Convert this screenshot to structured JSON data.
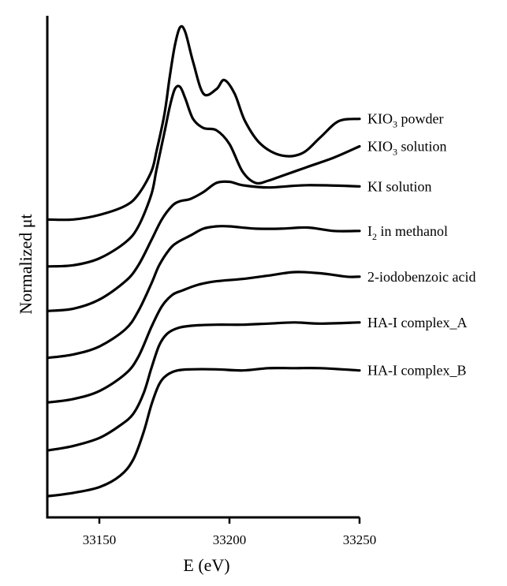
{
  "chart_data": {
    "type": "line",
    "xlabel": "E (eV)",
    "ylabel": "Normalized μt",
    "xlim": [
      33130,
      33250
    ],
    "x_ticks": [
      33150,
      33200,
      33250
    ],
    "y_ticks_shown": false,
    "grid": false,
    "legend": "none (labels placed at right end of each curve)",
    "series": [
      {
        "name": "KIO3 powder",
        "label_main": "KIO",
        "label_sub": "3",
        "label_rest": " powder",
        "x": [
          33130,
          33140,
          33150,
          33160,
          33165,
          33170,
          33172,
          33175,
          33177,
          33179,
          33181,
          33183,
          33186,
          33190,
          33195,
          33198,
          33202,
          33206,
          33212,
          33220,
          33228,
          33235,
          33242,
          33250
        ],
        "y": [
          12.3,
          12.3,
          12.5,
          12.9,
          13.4,
          14.4,
          15.3,
          16.9,
          18.5,
          19.9,
          20.7,
          20.5,
          19.2,
          17.8,
          18.0,
          18.4,
          17.8,
          16.6,
          15.6,
          15.1,
          15.2,
          15.9,
          16.6,
          16.7
        ]
      },
      {
        "name": "KIO3 solution",
        "label_main": "KIO",
        "label_sub": "3",
        "label_rest": " solution",
        "x": [
          33130,
          33140,
          33150,
          33160,
          33165,
          33170,
          33172,
          33175,
          33177,
          33179,
          33181,
          33183,
          33186,
          33190,
          33195,
          33200,
          33205,
          33210,
          33215,
          33220,
          33230,
          33240,
          33250
        ],
        "y": [
          10.25,
          10.3,
          10.6,
          11.3,
          12.0,
          13.4,
          14.5,
          16.1,
          17.2,
          18.0,
          18.1,
          17.6,
          16.7,
          16.3,
          16.2,
          15.6,
          14.4,
          13.9,
          14.0,
          14.2,
          14.6,
          15.0,
          15.5
        ]
      },
      {
        "name": "KI solution",
        "label_main": "KI solution",
        "label_sub": "",
        "label_rest": "",
        "x": [
          33130,
          33140,
          33150,
          33160,
          33165,
          33170,
          33174,
          33178,
          33181,
          33185,
          33190,
          33195,
          33200,
          33205,
          33215,
          33230,
          33250
        ],
        "y": [
          8.3,
          8.4,
          8.8,
          9.6,
          10.3,
          11.4,
          12.3,
          12.9,
          13.1,
          13.2,
          13.5,
          13.9,
          13.95,
          13.8,
          13.7,
          13.8,
          13.75
        ]
      },
      {
        "name": "I2 in methanol",
        "label_main": "I",
        "label_sub": "2",
        "label_rest": " in methanol",
        "x": [
          33130,
          33140,
          33150,
          33160,
          33165,
          33170,
          33173,
          33177,
          33180,
          33185,
          33190,
          33195,
          33200,
          33210,
          33220,
          33230,
          33240,
          33250
        ],
        "y": [
          6.25,
          6.4,
          6.75,
          7.5,
          8.3,
          9.5,
          10.3,
          11.0,
          11.3,
          11.6,
          11.9,
          12.0,
          12.0,
          11.9,
          11.9,
          11.95,
          11.8,
          11.8
        ]
      },
      {
        "name": "2-iodobenzoic acid",
        "label_main": "2-iodobenzoic acid",
        "label_sub": "",
        "label_rest": "",
        "x": [
          33130,
          33140,
          33150,
          33160,
          33165,
          33170,
          33174,
          33178,
          33182,
          33188,
          33195,
          33205,
          33215,
          33225,
          33235,
          33245,
          33250
        ],
        "y": [
          4.3,
          4.45,
          4.8,
          5.55,
          6.3,
          7.6,
          8.5,
          9.0,
          9.2,
          9.45,
          9.6,
          9.7,
          9.85,
          10.0,
          9.95,
          9.8,
          9.8
        ]
      },
      {
        "name": "HA-I complex_A",
        "label_main": "HA-I complex_A",
        "label_sub": "",
        "label_rest": "",
        "x": [
          33130,
          33140,
          33150,
          33158,
          33163,
          33167,
          33170,
          33173,
          33176,
          33180,
          33185,
          33195,
          33205,
          33215,
          33225,
          33235,
          33250
        ],
        "y": [
          2.2,
          2.4,
          2.75,
          3.3,
          3.8,
          4.7,
          5.8,
          6.8,
          7.3,
          7.55,
          7.65,
          7.7,
          7.7,
          7.75,
          7.8,
          7.75,
          7.8
        ]
      },
      {
        "name": "HA-I complex_B",
        "label_main": "HA-I complex_B",
        "label_sub": "",
        "label_rest": "",
        "x": [
          33130,
          33140,
          33150,
          33158,
          33163,
          33167,
          33170,
          33173,
          33176,
          33180,
          33185,
          33195,
          33205,
          33215,
          33225,
          33235,
          33250
        ],
        "y": [
          0.2,
          0.35,
          0.6,
          1.1,
          1.8,
          3.0,
          4.2,
          5.1,
          5.5,
          5.7,
          5.75,
          5.75,
          5.7,
          5.8,
          5.8,
          5.8,
          5.7
        ]
      }
    ]
  }
}
